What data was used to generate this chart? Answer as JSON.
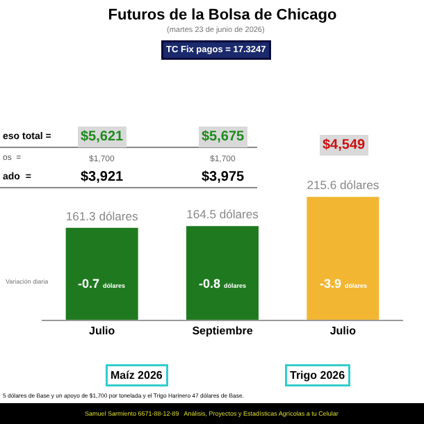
{
  "chart_data": {
    "type": "bar",
    "title": "Futuros de la Bolsa de Chicago",
    "subtitle": "(martes 23 de junio de 2026)",
    "categories": [
      "Julio",
      "Septiembre",
      "Julio"
    ],
    "values": [
      161.3,
      164.5,
      215.6
    ],
    "colors": [
      "#1f7a1f",
      "#1f7a1f",
      "#f2b632"
    ],
    "value_labels": [
      "161.3 dólares",
      "164.5 dólares",
      "215.6 dólares"
    ],
    "tick_labels": "x",
    "grid": false,
    "legend": false,
    "annotations": [
      "TC Fix pagos = 17.3247",
      "eso total =",
      "$5,621",
      "$5,675",
      "$4,549",
      "os  =",
      "$1,700",
      "$1,700",
      "ado  =",
      "$3,921",
      "$3,975",
      "Variación diaria",
      "-0.7 dólares",
      "-0.8 dólares",
      "-3.9 dólares",
      "Maíz 2026",
      "Trigo 2026",
      "5 dólares de Base y un apoyo de $1,700 por tonelada y el Trigo Harinero 47 dólares de Base.",
      "Samuel Sarmiento 6671-88-12-89   Análisis, Proyectos y Estadísticas Agrícolas a tu Celular"
    ]
  }
}
